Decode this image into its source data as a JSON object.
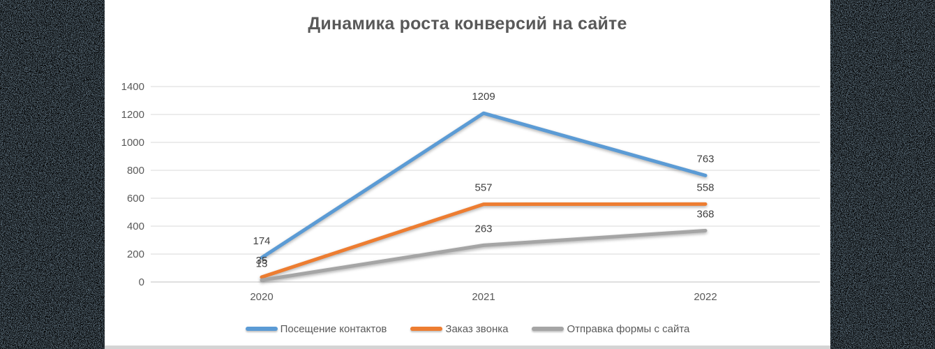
{
  "background": {
    "noise_base_color": "#4e5d68",
    "noise_speckle_color": "#000000"
  },
  "panel": {
    "background": "#ffffff",
    "bottom_strip_color": "#d4d4d4"
  },
  "chart_data": {
    "type": "line",
    "title": "Динамика роста конверсий на сайте",
    "title_color": "#595959",
    "categories": [
      "2020",
      "2021",
      "2022"
    ],
    "series": [
      {
        "name": "Посещение контактов",
        "color": "#5B9BD5",
        "values": [
          174,
          1209,
          763
        ]
      },
      {
        "name": "Заказ звонка",
        "color": "#ED7D31",
        "values": [
          35,
          557,
          558
        ]
      },
      {
        "name": "Отправка формы с сайта",
        "color": "#A5A5A5",
        "values": [
          13,
          263,
          368
        ]
      }
    ],
    "yticks": [
      0,
      200,
      400,
      600,
      800,
      1000,
      1200,
      1400
    ],
    "ylim": [
      0,
      1400
    ],
    "grid": true,
    "gridline_color": "#D9D9D9",
    "zero_line_color": "#BFBFBF",
    "axis_label_color": "#595959",
    "data_label_color": "#404040",
    "data_labels": true,
    "legend_position": "bottom",
    "xlabel": "",
    "ylabel": ""
  }
}
